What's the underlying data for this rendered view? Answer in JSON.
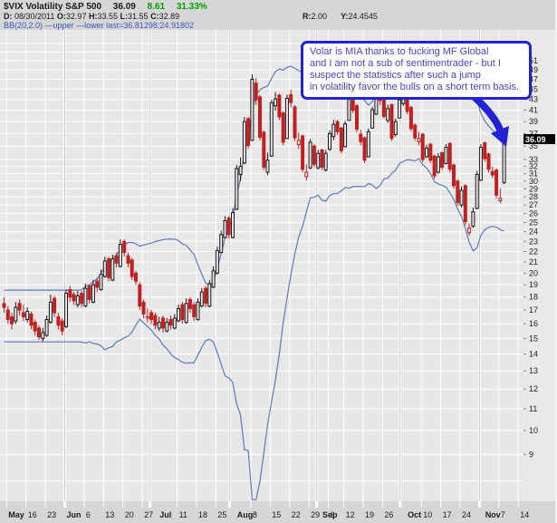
{
  "header": {
    "title": "$VIX Volatility S&P 500",
    "price": "36.09",
    "change": "8.61",
    "change_pct": "31.33%",
    "d_label": "D:",
    "d_value": "08/30/2011",
    "o_label": "O:",
    "o_value": "32.97",
    "h_label": "H:",
    "h_value": "33.55",
    "l_label": "L:",
    "l_value": "31.55",
    "c_label": "C:",
    "c_value": "32.89",
    "r_label": "R:",
    "r_value": "2.00",
    "y_label": "Y:",
    "y_value": "24.4545",
    "bb_label": "BB(20,2.0)",
    "bb_upper": "—upper",
    "bb_lower": "—lower",
    "bb_last_label": "last=",
    "bb_last_value": "36.81298;24.91802"
  },
  "annotation": {
    "lines": [
      "Volar is MIA thanks to fucking MF Global",
      "and I am not a sub of sentimentrader - but I",
      "suspect the statistics after such a jump",
      "in volatility favor the bulls on a short term basis."
    ]
  },
  "colors": {
    "up_candle": "#1a1a1a",
    "down_candle": "#c02020",
    "hollow_fill": "#e7e7e7",
    "band_blue": "#5b7abf",
    "grid_white": "#ffffff",
    "plot_bg": "#e7e7e7",
    "axis_bg": "#e9e9e9",
    "page_bg": "#d6d6d6",
    "month_line": "#c2cac2",
    "green_text": "#00a000",
    "blue_text": "#3a56c4",
    "annotation_blue": "#2323d6",
    "annotation_text": "#4444d0",
    "last_price_box": "#000000",
    "last_price_text": "#ffffff",
    "axis_text": "#222222"
  },
  "chart_data": {
    "type": "candlestick",
    "title": "$VIX Volatility S&P 500",
    "last_price": 36.09,
    "y_scale": "log",
    "y_top": 58.4,
    "y_bottom": 7.32,
    "yticks": [
      51,
      49,
      47,
      45,
      43,
      41,
      39,
      37,
      35,
      33,
      32,
      31,
      30,
      29,
      28,
      27,
      26,
      25,
      24,
      23,
      22,
      21,
      20,
      19,
      18,
      17,
      16,
      15,
      14,
      13,
      12,
      11,
      10,
      9
    ],
    "grid_extra": [
      55,
      53,
      8
    ],
    "xlabels": [
      [
        "May",
        1,
        1
      ],
      [
        "16",
        6,
        0
      ],
      [
        "23",
        11,
        0
      ],
      [
        "Jun",
        16,
        1
      ],
      [
        "6",
        21,
        0
      ],
      [
        "13",
        26,
        0
      ],
      [
        "20",
        31,
        0
      ],
      [
        "27",
        36,
        0
      ],
      [
        "Jul",
        40,
        1
      ],
      [
        "11",
        45,
        0
      ],
      [
        "18",
        50,
        0
      ],
      [
        "25",
        55,
        0
      ],
      [
        "Aug",
        60,
        1
      ],
      [
        "8",
        64,
        0
      ],
      [
        "15",
        69,
        0
      ],
      [
        "22",
        74,
        0
      ],
      [
        "29",
        79,
        0
      ],
      [
        "Sep",
        82,
        1
      ],
      [
        "6",
        84,
        0
      ],
      [
        "12",
        88,
        0
      ],
      [
        "19",
        93,
        0
      ],
      [
        "26",
        98,
        0
      ],
      [
        "Oct",
        104,
        1
      ],
      [
        "10",
        108,
        0
      ],
      [
        "17",
        113,
        0
      ],
      [
        "24",
        118,
        0
      ],
      [
        "Nov",
        124,
        1
      ],
      [
        "7",
        128,
        0
      ],
      [
        "14",
        133,
        0
      ]
    ],
    "month_gridlines": [
      16,
      38,
      58.5,
      81,
      102.5,
      123
    ],
    "bollinger": {
      "period": 20,
      "stdev": 2.0,
      "last_upper": 36.81298,
      "last_lower": 24.91802
    },
    "candles": [
      [
        17.5,
        18.0,
        16.8,
        17.2
      ],
      [
        17.0,
        17.3,
        16.0,
        16.3
      ],
      [
        16.5,
        16.8,
        15.6,
        16.0
      ],
      [
        16.2,
        17.6,
        16.0,
        17.2
      ],
      [
        17.5,
        17.8,
        16.6,
        17.0
      ],
      [
        16.8,
        17.4,
        16.2,
        16.5
      ],
      [
        16.3,
        17.2,
        16.1,
        16.9
      ],
      [
        16.7,
        16.9,
        15.6,
        15.9
      ],
      [
        16.1,
        16.3,
        15.2,
        15.5
      ],
      [
        15.7,
        15.9,
        14.9,
        15.1
      ],
      [
        15.0,
        15.7,
        14.8,
        15.4
      ],
      [
        15.2,
        16.6,
        15.1,
        16.3
      ],
      [
        16.1,
        18.2,
        16.0,
        17.6
      ],
      [
        17.9,
        18.1,
        16.5,
        16.8
      ],
      [
        16.5,
        16.8,
        15.6,
        15.9
      ],
      [
        16.2,
        16.4,
        15.2,
        15.5
      ],
      [
        15.8,
        18.6,
        15.7,
        18.3
      ],
      [
        18.6,
        18.9,
        17.6,
        18.0
      ],
      [
        18.2,
        18.4,
        17.4,
        17.7
      ],
      [
        17.4,
        18.5,
        17.2,
        18.1
      ],
      [
        18.3,
        18.5,
        17.2,
        17.5
      ],
      [
        17.3,
        19.1,
        17.2,
        18.7
      ],
      [
        18.9,
        19.0,
        17.5,
        17.8
      ],
      [
        17.6,
        19.4,
        17.5,
        19.0
      ],
      [
        19.3,
        19.6,
        18.4,
        18.8
      ],
      [
        18.6,
        20.3,
        18.5,
        19.9
      ],
      [
        19.7,
        21.5,
        19.6,
        21.1
      ],
      [
        21.3,
        21.5,
        19.3,
        19.6
      ],
      [
        19.4,
        21.7,
        19.3,
        21.3
      ],
      [
        21.6,
        21.9,
        20.5,
        20.9
      ],
      [
        20.6,
        23.2,
        20.5,
        22.7
      ],
      [
        23.0,
        23.2,
        21.5,
        21.9
      ],
      [
        21.6,
        21.9,
        20.5,
        20.9
      ],
      [
        21.2,
        21.4,
        19.4,
        19.7
      ],
      [
        20.0,
        20.2,
        19.0,
        19.3
      ],
      [
        19.0,
        19.2,
        17.0,
        17.3
      ],
      [
        17.6,
        17.8,
        16.4,
        16.7
      ],
      [
        16.4,
        17.1,
        16.1,
        16.5
      ],
      [
        16.8,
        17.0,
        16.0,
        16.3
      ],
      [
        16.6,
        16.8,
        15.6,
        15.9
      ],
      [
        15.7,
        16.5,
        15.5,
        16.1
      ],
      [
        16.4,
        16.6,
        15.4,
        15.7
      ],
      [
        15.5,
        16.4,
        15.4,
        16.1
      ],
      [
        16.3,
        16.6,
        15.6,
        15.9
      ],
      [
        15.7,
        16.7,
        15.6,
        16.4
      ],
      [
        16.2,
        17.4,
        16.1,
        17.1
      ],
      [
        17.4,
        17.6,
        16.0,
        16.3
      ],
      [
        16.1,
        17.9,
        16.0,
        17.5
      ],
      [
        17.8,
        18.0,
        16.8,
        17.1
      ],
      [
        17.4,
        17.6,
        16.2,
        16.5
      ],
      [
        16.3,
        17.9,
        16.2,
        17.6
      ],
      [
        17.3,
        18.7,
        17.2,
        18.4
      ],
      [
        18.7,
        18.9,
        17.2,
        17.5
      ],
      [
        17.3,
        19.4,
        17.2,
        19.1
      ],
      [
        18.8,
        20.6,
        18.7,
        20.2
      ],
      [
        20.0,
        22.5,
        19.9,
        22.1
      ],
      [
        21.9,
        24.1,
        21.8,
        23.7
      ],
      [
        23.4,
        25.7,
        23.3,
        25.2
      ],
      [
        25.5,
        25.7,
        23.3,
        23.7
      ],
      [
        23.4,
        26.6,
        23.3,
        26.1
      ],
      [
        26.5,
        32.2,
        26.4,
        31.7
      ],
      [
        30.9,
        33.3,
        30.0,
        32.0
      ],
      [
        32.5,
        39.8,
        32.3,
        39.0
      ],
      [
        39.5,
        39.8,
        34.6,
        35.1
      ],
      [
        35.9,
        48.0,
        35.8,
        47.0
      ],
      [
        46.2,
        47.2,
        41.9,
        42.9
      ],
      [
        43.5,
        43.8,
        35.9,
        36.4
      ],
      [
        37.2,
        37.5,
        31.5,
        31.9
      ],
      [
        31.2,
        34.0,
        30.8,
        32.9
      ],
      [
        33.5,
        42.9,
        33.4,
        42.4
      ],
      [
        41.8,
        44.4,
        40.9,
        43.1
      ],
      [
        43.8,
        44.1,
        39.3,
        39.8
      ],
      [
        40.5,
        40.8,
        35.1,
        35.6
      ],
      [
        36.2,
        43.9,
        36.1,
        43.2
      ],
      [
        43.9,
        44.9,
        41.5,
        42.4
      ],
      [
        41.6,
        41.9,
        35.8,
        36.3
      ],
      [
        35.2,
        37.1,
        34.6,
        35.9
      ],
      [
        36.6,
        36.8,
        31.2,
        31.6
      ],
      [
        30.6,
        32.3,
        30.1,
        31.2
      ],
      [
        31.8,
        36.1,
        31.6,
        35.6
      ],
      [
        35.0,
        35.3,
        31.9,
        32.3
      ],
      [
        31.8,
        34.4,
        31.6,
        33.9
      ],
      [
        34.4,
        34.6,
        31.5,
        31.9
      ],
      [
        31.5,
        34.4,
        31.3,
        33.9
      ],
      [
        34.5,
        37.5,
        34.3,
        37.0
      ],
      [
        36.5,
        39.3,
        35.9,
        38.5
      ],
      [
        39.0,
        39.3,
        36.8,
        37.3
      ],
      [
        37.9,
        38.1,
        33.9,
        34.3
      ],
      [
        34.9,
        39.1,
        34.8,
        38.6
      ],
      [
        39.2,
        43.5,
        39.1,
        43.0
      ],
      [
        43.6,
        43.9,
        40.5,
        41.0
      ],
      [
        41.8,
        42.1,
        37.2,
        37.7
      ],
      [
        36.9,
        37.6,
        35.1,
        35.7
      ],
      [
        36.3,
        36.5,
        32.5,
        32.9
      ],
      [
        33.4,
        37.8,
        33.3,
        37.3
      ],
      [
        37.9,
        41.6,
        37.8,
        41.1
      ],
      [
        40.3,
        44.5,
        40.1,
        44.0
      ],
      [
        44.5,
        45.0,
        41.9,
        42.8
      ],
      [
        43.4,
        43.7,
        39.5,
        39.9
      ],
      [
        39.2,
        42.0,
        38.8,
        41.3
      ],
      [
        42.0,
        42.2,
        35.8,
        36.2
      ],
      [
        36.8,
        39.5,
        36.5,
        39.0
      ],
      [
        39.6,
        43.4,
        39.5,
        42.9
      ],
      [
        42.2,
        46.1,
        41.8,
        45.5
      ],
      [
        46.0,
        46.2,
        40.3,
        40.8
      ],
      [
        41.5,
        41.8,
        37.4,
        37.8
      ],
      [
        38.4,
        38.7,
        35.9,
        36.3
      ],
      [
        35.7,
        37.3,
        35.1,
        36.2
      ],
      [
        36.9,
        37.1,
        32.6,
        33.0
      ],
      [
        33.4,
        35.2,
        33.2,
        34.7
      ],
      [
        35.3,
        35.5,
        32.5,
        32.9
      ],
      [
        33.5,
        33.7,
        30.3,
        30.7
      ],
      [
        31.2,
        33.9,
        31.0,
        33.4
      ],
      [
        34.0,
        34.2,
        31.5,
        31.9
      ],
      [
        32.4,
        35.3,
        32.3,
        34.8
      ],
      [
        35.4,
        35.6,
        31.2,
        31.6
      ],
      [
        32.2,
        32.4,
        29.0,
        29.4
      ],
      [
        30.0,
        30.2,
        26.9,
        27.3
      ],
      [
        27.0,
        29.3,
        26.7,
        28.8
      ],
      [
        29.4,
        29.6,
        24.7,
        25.1
      ],
      [
        23.9,
        24.9,
        23.6,
        24.4
      ],
      [
        24.6,
        26.7,
        24.4,
        26.2
      ],
      [
        26.6,
        31.4,
        26.5,
        30.9
      ],
      [
        30.1,
        35.3,
        30.0,
        34.8
      ],
      [
        35.5,
        35.7,
        32.7,
        33.1
      ],
      [
        33.8,
        34.0,
        31.2,
        31.6
      ],
      [
        31.3,
        32.0,
        30.4,
        30.8
      ],
      [
        31.5,
        31.7,
        27.8,
        28.2
      ],
      [
        27.5,
        29.0,
        27.2,
        27.8
      ],
      [
        29.8,
        36.8,
        29.6,
        36.1
      ]
    ]
  }
}
